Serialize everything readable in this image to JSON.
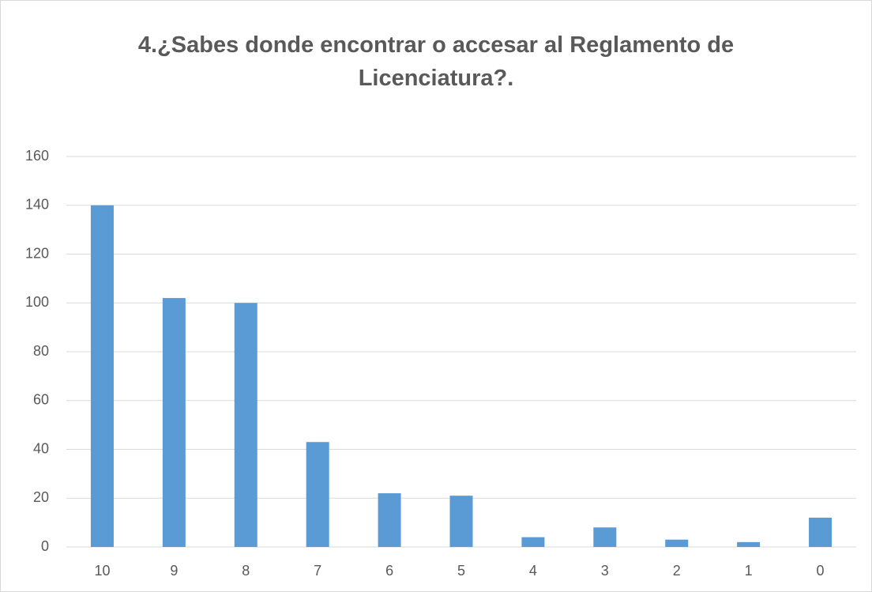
{
  "chart_data": {
    "type": "bar",
    "title": "4.¿Sabes donde encontrar o accesar al Reglamento de Licenciatura?.",
    "categories": [
      "10",
      "9",
      "8",
      "7",
      "6",
      "5",
      "4",
      "3",
      "2",
      "1",
      "0"
    ],
    "values": [
      140,
      102,
      100,
      43,
      22,
      21,
      4,
      8,
      3,
      2,
      12
    ],
    "color": "#5b9bd5",
    "ylim": [
      0,
      160
    ],
    "yticks": [
      0,
      20,
      40,
      60,
      80,
      100,
      120,
      140,
      160
    ],
    "grid": true
  }
}
